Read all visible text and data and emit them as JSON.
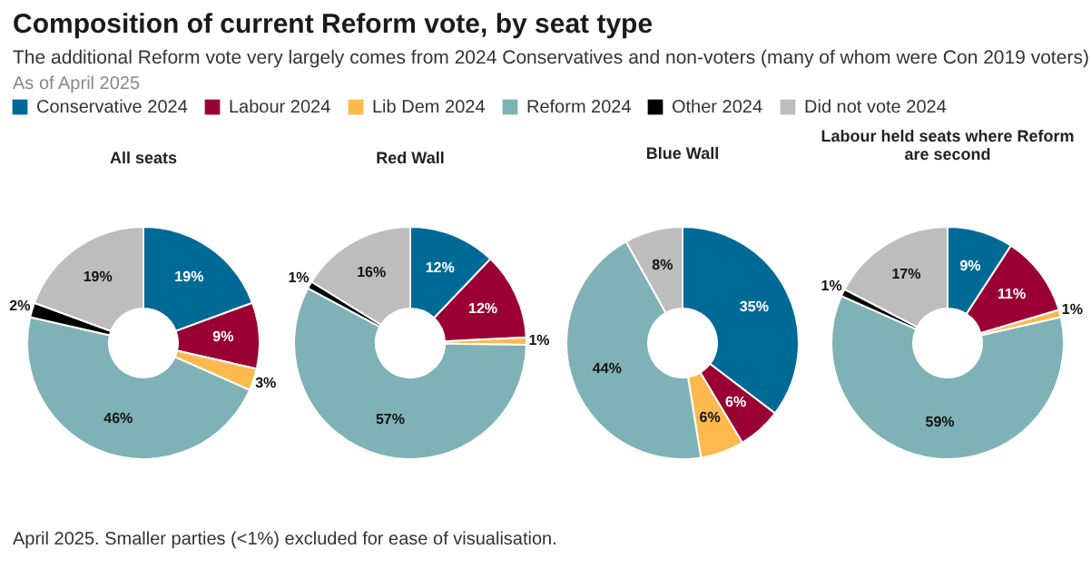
{
  "chart_data": [
    {
      "type": "other",
      "title": "Composition of current Reform vote, by seat type",
      "subtitle": "The additional Reform vote very largely comes from 2024 Conservatives and non-voters (many of whom were Con 2019 voters)",
      "annotations": [
        "As of April 2025",
        "April 2025. Smaller parties (<1%) excluded for ease of visualisation."
      ]
    },
    {
      "type": "donut",
      "title": "All seats",
      "categories": [
        "Conservative 2024",
        "Labour 2024",
        "Lib Dem 2024",
        "Reform 2024",
        "Other 2024",
        "Did not vote 2024"
      ],
      "values": [
        19,
        9,
        3,
        46,
        2,
        19
      ],
      "value_labels": [
        "19%",
        "9%",
        "3%",
        "46%",
        "2%",
        "19%"
      ],
      "colors": [
        "#006a96",
        "#9b0034",
        "#fdb94d",
        "#7fb2b6",
        "#000000",
        "#bdbdbd"
      ],
      "legend": "top right"
    },
    {
      "type": "donut",
      "title": "Red Wall",
      "categories": [
        null,
        null,
        null,
        null,
        null,
        null
      ],
      "values": [
        12,
        12,
        1,
        57,
        1,
        16
      ],
      "value_labels": [
        "12%",
        "12%",
        "1%",
        "57%",
        "1%",
        "16%"
      ],
      "colors": [
        "#006a96",
        "#9b0034",
        "#fdb94d",
        "#7fb2b6",
        "#000000",
        "#bdbdbd"
      ]
    },
    {
      "type": "donut",
      "title": "Blue Wall",
      "categories": [
        null,
        null,
        null,
        null,
        null,
        null
      ],
      "values": [
        35,
        6,
        6,
        44,
        null,
        8
      ],
      "value_labels": [
        "35%",
        "6%",
        "6%",
        "44%",
        null,
        "8%"
      ],
      "colors": [
        "#006a96",
        "#9b0034",
        "#fdb94d",
        "#7fb2b6",
        "#000000",
        "#bdbdbd"
      ]
    },
    {
      "type": "donut",
      "title": "Labour held seats where Reform are second",
      "categories": [
        null,
        null,
        null,
        null,
        null,
        null
      ],
      "values": [
        9,
        11,
        1,
        59,
        1,
        17
      ],
      "value_labels": [
        "9%",
        "11%",
        "1%",
        "59%",
        "1%",
        "17%"
      ],
      "colors": [
        "#006a96",
        "#9b0034",
        "#fdb94d",
        "#7fb2b6",
        "#000000",
        "#bdbdbd"
      ]
    }
  ]
}
